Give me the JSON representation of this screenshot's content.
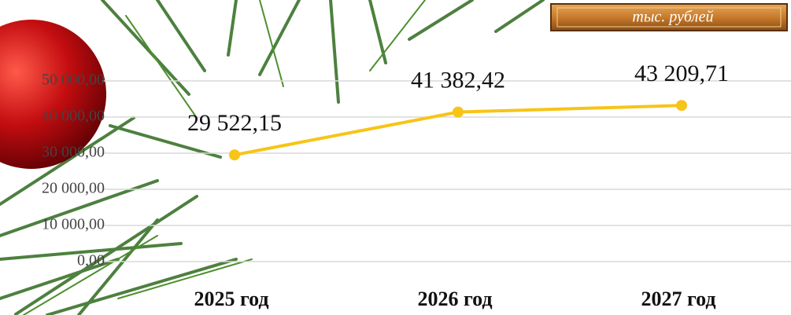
{
  "chart_data": {
    "type": "line",
    "unit_note": "тыс. рублей",
    "categories": [
      "2025 год",
      "2026 год",
      "2027 год"
    ],
    "series": [
      {
        "name": "",
        "color": "#f7c417",
        "values": [
          29522.15,
          41382.42,
          43209.71
        ],
        "value_labels": [
          "29 522,15",
          "41 382,42",
          "43 209,71"
        ]
      }
    ],
    "ylim": [
      0,
      50000
    ],
    "yticks": [
      {
        "value": 0,
        "label": "0,00"
      },
      {
        "value": 10000,
        "label": "10 000,00"
      },
      {
        "value": 20000,
        "label": "20 000,00"
      },
      {
        "value": 30000,
        "label": "30 000,00"
      },
      {
        "value": 40000,
        "label": "40 000,00"
      },
      {
        "value": 50000,
        "label": "50 000,00"
      }
    ],
    "grid": true
  }
}
